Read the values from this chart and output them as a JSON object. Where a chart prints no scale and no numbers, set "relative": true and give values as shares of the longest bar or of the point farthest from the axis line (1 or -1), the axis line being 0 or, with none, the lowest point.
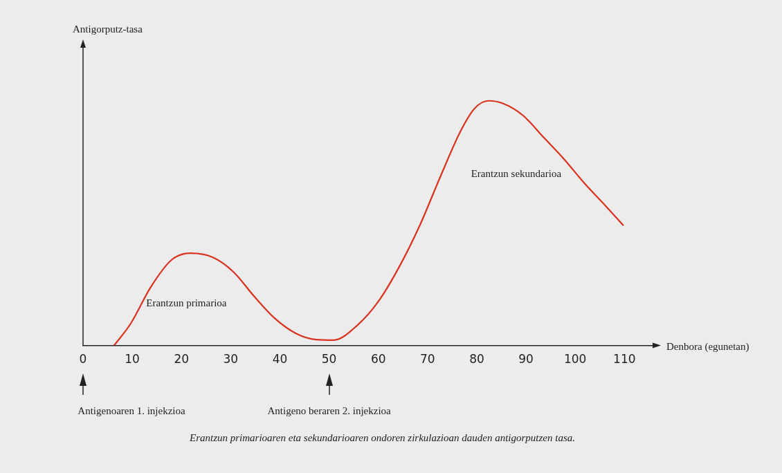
{
  "chart_data": {
    "type": "line",
    "relative": true,
    "xlabel": "Denbora (egunetan)",
    "x": [
      6.3,
      9.7,
      13.8,
      18,
      21.8,
      26.4,
      30.6,
      34.8,
      39,
      43.2,
      47.4,
      50.9,
      55.8,
      60,
      64.2,
      68.4,
      72.6,
      76.8,
      79.6,
      82.4,
      85.2,
      89.4,
      93.6,
      97.8,
      102,
      106.2,
      109.8
    ],
    "series": [
      {
        "color": "#d8321e",
        "values": [
          0,
          0.09,
          0.24,
          0.35,
          0.377,
          0.36,
          0.3,
          0.2,
          0.11,
          0.05,
          0.024,
          0.022,
          0.084,
          0.18,
          0.32,
          0.49,
          0.69,
          0.88,
          0.97,
          1,
          0.99,
          0.94,
          0.85,
          0.76,
          0.66,
          0.57,
          0.49
        ]
      }
    ],
    "xlim": [
      0,
      116
    ],
    "xticks": [
      0,
      10,
      20,
      30,
      40,
      50,
      60,
      70,
      80,
      90,
      100,
      110
    ],
    "grid": false,
    "legend": false,
    "marker": "none",
    "line_style": "solid",
    "annotations": [
      "Antigenoaren 1. injekzioa",
      "Antigeno beraren 2. injekzioa",
      "Erantzun primarioa",
      "Erantzun sekundarioa",
      "Erantzun primarioaren eta sekundarioaren ondoren zirkulazioan dauden antigorputzen tasa.",
      "Antigorputz-tasa"
    ]
  }
}
